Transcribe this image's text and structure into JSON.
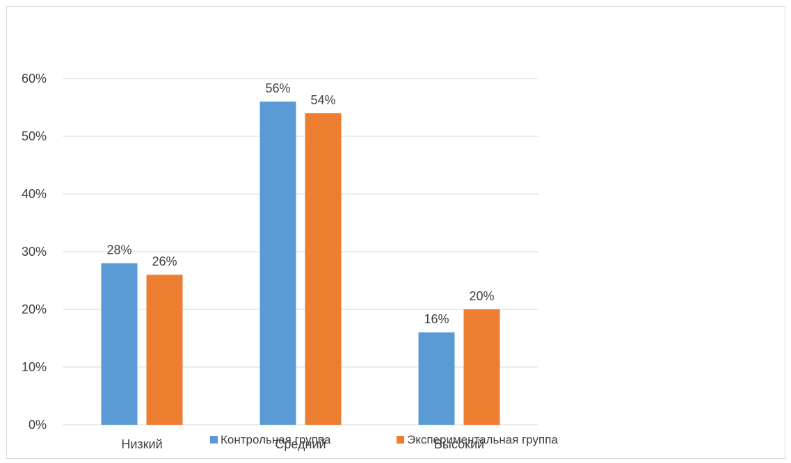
{
  "chart_data": {
    "type": "bar",
    "categories": [
      "Низкий",
      "Средний",
      "Высокий"
    ],
    "series": [
      {
        "name": "Контрольная группа",
        "values": [
          28,
          56,
          16
        ],
        "color": "#5b9bd5"
      },
      {
        "name": "Экспериментальная группа",
        "values": [
          26,
          54,
          20
        ],
        "color": "#ed7d31"
      }
    ],
    "data_labels": [
      [
        "28%",
        "56%",
        "16%"
      ],
      [
        "26%",
        "54%",
        "20%"
      ]
    ],
    "yticks": [
      "0%",
      "10%",
      "20%",
      "30%",
      "40%",
      "50%",
      "60%"
    ],
    "ylim": [
      0,
      60
    ],
    "grid": true,
    "gridline_color": "#d9d9d9",
    "legend": "bottom",
    "title": "",
    "xlabel": "",
    "ylabel": ""
  }
}
